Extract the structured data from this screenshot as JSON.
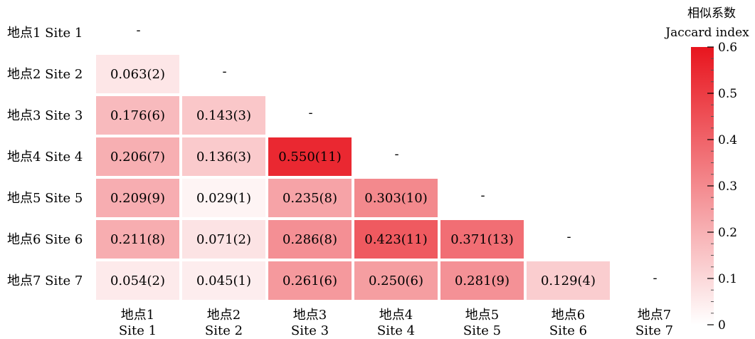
{
  "chart_data": {
    "type": "heatmap",
    "row_labels": [
      "地点1 Site 1",
      "地点2 Site 2",
      "地点3 Site 3",
      "地点4 Site 4",
      "地点5 Site 5",
      "地点6 Site 6",
      "地点7 Site 7"
    ],
    "col_labels": [
      {
        "cn": "地点1",
        "en": "Site 1"
      },
      {
        "cn": "地点2",
        "en": "Site 2"
      },
      {
        "cn": "地点3",
        "en": "Site 3"
      },
      {
        "cn": "地点4",
        "en": "Site 4"
      },
      {
        "cn": "地点5",
        "en": "Site 5"
      },
      {
        "cn": "地点6",
        "en": "Site 6"
      },
      {
        "cn": "地点7",
        "en": "Site 7"
      }
    ],
    "diagonal_marker": "-",
    "cells": [
      {
        "row": 1,
        "col": 0,
        "value": 0.063,
        "label": "0.063(2)"
      },
      {
        "row": 2,
        "col": 0,
        "value": 0.176,
        "label": "0.176(6)"
      },
      {
        "row": 2,
        "col": 1,
        "value": 0.143,
        "label": "0.143(3)"
      },
      {
        "row": 3,
        "col": 0,
        "value": 0.206,
        "label": "0.206(7)"
      },
      {
        "row": 3,
        "col": 1,
        "value": 0.136,
        "label": "0.136(3)"
      },
      {
        "row": 3,
        "col": 2,
        "value": 0.55,
        "label": "0.550(11)"
      },
      {
        "row": 4,
        "col": 0,
        "value": 0.209,
        "label": "0.209(9)"
      },
      {
        "row": 4,
        "col": 1,
        "value": 0.029,
        "label": "0.029(1)"
      },
      {
        "row": 4,
        "col": 2,
        "value": 0.235,
        "label": "0.235(8)"
      },
      {
        "row": 4,
        "col": 3,
        "value": 0.303,
        "label": "0.303(10)"
      },
      {
        "row": 5,
        "col": 0,
        "value": 0.211,
        "label": "0.211(8)"
      },
      {
        "row": 5,
        "col": 1,
        "value": 0.071,
        "label": "0.071(2)"
      },
      {
        "row": 5,
        "col": 2,
        "value": 0.286,
        "label": "0.286(8)"
      },
      {
        "row": 5,
        "col": 3,
        "value": 0.423,
        "label": "0.423(11)"
      },
      {
        "row": 5,
        "col": 4,
        "value": 0.371,
        "label": "0.371(13)"
      },
      {
        "row": 6,
        "col": 0,
        "value": 0.054,
        "label": "0.054(2)"
      },
      {
        "row": 6,
        "col": 1,
        "value": 0.045,
        "label": "0.045(1)"
      },
      {
        "row": 6,
        "col": 2,
        "value": 0.261,
        "label": "0.261(6)"
      },
      {
        "row": 6,
        "col": 3,
        "value": 0.25,
        "label": "0.250(6)"
      },
      {
        "row": 6,
        "col": 4,
        "value": 0.281,
        "label": "0.281(9)"
      },
      {
        "row": 6,
        "col": 5,
        "value": 0.129,
        "label": "0.129(4)"
      }
    ],
    "colorbar": {
      "title_cn": "相似系数",
      "title_en": "Jaccard index",
      "min": 0,
      "max": 0.6,
      "ticks": [
        0,
        0.1,
        0.2,
        0.3,
        0.4,
        0.5,
        0.6
      ],
      "tick_labels": [
        "0",
        "0.1",
        "0.2",
        "0.3",
        "0.4",
        "0.5",
        "0.6"
      ],
      "color_low": "#ffffff",
      "color_high": "#e8151e"
    },
    "text_color": "#000000",
    "cell_border_color": "#ffffff"
  }
}
